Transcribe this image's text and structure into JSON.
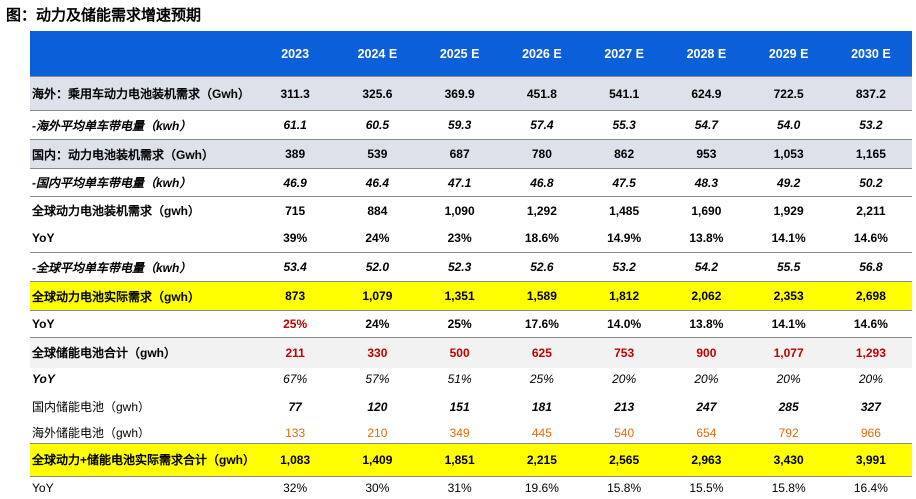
{
  "title": "图：动力及储能需求增速预期",
  "header": {
    "corner": "",
    "years": [
      "2023",
      "2024 E",
      "2025 E",
      "2026 E",
      "2027 E",
      "2028 E",
      "2029 E",
      "2030 E"
    ]
  },
  "rows": [
    {
      "label": "海外：乘用车动力电池装机需求（Gwh）",
      "values": [
        "311.3",
        "325.6",
        "369.9",
        "451.8",
        "541.1",
        "624.9",
        "722.5",
        "837.2"
      ]
    },
    {
      "label": "-海外平均单车带电量（kwh）",
      "values": [
        "61.1",
        "60.5",
        "59.3",
        "57.4",
        "55.3",
        "54.7",
        "54.0",
        "53.2"
      ]
    },
    {
      "label": "国内：动力电池装机需求（Gwh）",
      "values": [
        "389",
        "539",
        "687",
        "780",
        "862",
        "953",
        "1,053",
        "1,165"
      ]
    },
    {
      "label": "-国内平均单车带电量（kwh）",
      "values": [
        "46.9",
        "46.4",
        "47.1",
        "46.8",
        "47.5",
        "48.3",
        "49.2",
        "50.2"
      ]
    },
    {
      "label": "全球动力电池装机需求（gwh）",
      "values": [
        "715",
        "884",
        "1,090",
        "1,292",
        "1,485",
        "1,690",
        "1,929",
        "2,211"
      ]
    },
    {
      "label": "YoY",
      "values": [
        "39%",
        "24%",
        "23%",
        "18.6%",
        "14.9%",
        "13.8%",
        "14.1%",
        "14.6%"
      ]
    },
    {
      "label": "-全球平均单车带电量（kwh）",
      "values": [
        "53.4",
        "52.0",
        "52.3",
        "52.6",
        "53.2",
        "54.2",
        "55.5",
        "56.8"
      ]
    },
    {
      "label": "全球动力电池实际需求（gwh）",
      "values": [
        "873",
        "1,079",
        "1,351",
        "1,589",
        "1,812",
        "2,062",
        "2,353",
        "2,698"
      ]
    },
    {
      "label": "YoY",
      "values": [
        "25%",
        "24%",
        "25%",
        "17.6%",
        "14.0%",
        "13.8%",
        "14.1%",
        "14.6%"
      ]
    },
    {
      "label": "全球储能电池合计（gwh）",
      "values": [
        "211",
        "330",
        "500",
        "625",
        "753",
        "900",
        "1,077",
        "1,293"
      ]
    },
    {
      "label": "YoY",
      "values": [
        "67%",
        "57%",
        "51%",
        "25%",
        "20%",
        "20%",
        "20%",
        "20%"
      ]
    },
    {
      "label": "国内储能电池（gwh）",
      "values": [
        "77",
        "120",
        "151",
        "181",
        "213",
        "247",
        "285",
        "327"
      ]
    },
    {
      "label": "海外储能电池（gwh）",
      "values": [
        "133",
        "210",
        "349",
        "445",
        "540",
        "654",
        "792",
        "966"
      ]
    },
    {
      "label": "全球动力+储能电池实际需求合计（gwh）",
      "values": [
        "1,083",
        "1,409",
        "1,851",
        "2,215",
        "2,565",
        "2,963",
        "3,430",
        "3,991"
      ]
    },
    {
      "label": "YoY",
      "values": [
        "32%",
        "30%",
        "31%",
        "19.6%",
        "15.8%",
        "15.5%",
        "15.8%",
        "16.4%"
      ]
    }
  ],
  "colors": {
    "header_bg": "#0b5fd8",
    "highlight_yellow": "#ffff00",
    "row_gray": "#dde1ea",
    "red_text": "#c00000",
    "orange_text": "#e26b0a"
  }
}
